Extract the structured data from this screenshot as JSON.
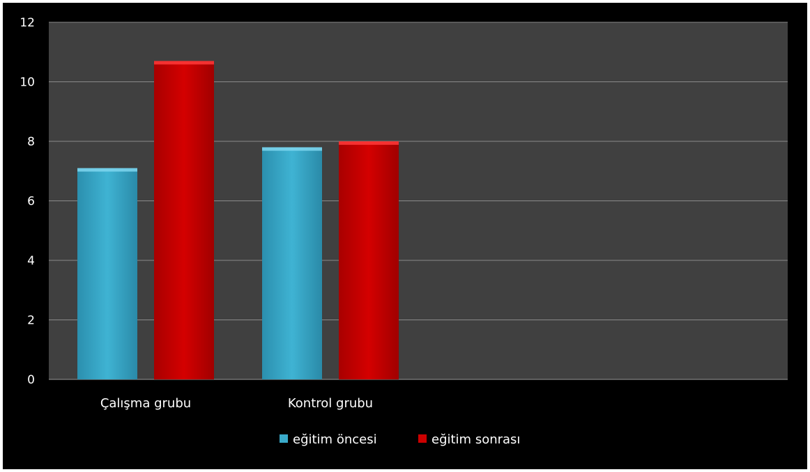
{
  "chart_data": {
    "type": "bar",
    "categories": [
      "Çalışma grubu",
      "Kontrol grubu"
    ],
    "series": [
      {
        "name": "eğitim öncesi",
        "values": [
          7.1,
          7.8
        ],
        "color": "#3aaac9"
      },
      {
        "name": "eğitim sonrası",
        "values": [
          10.7,
          8.0
        ],
        "color": "#cc0000"
      }
    ],
    "ylim": [
      0,
      12
    ],
    "yticks": [
      "0",
      "2",
      "4",
      "6",
      "8",
      "10",
      "12"
    ],
    "grid": true,
    "legend_position": "bottom",
    "plot_background": "#404040",
    "chart_background": "#000000"
  }
}
